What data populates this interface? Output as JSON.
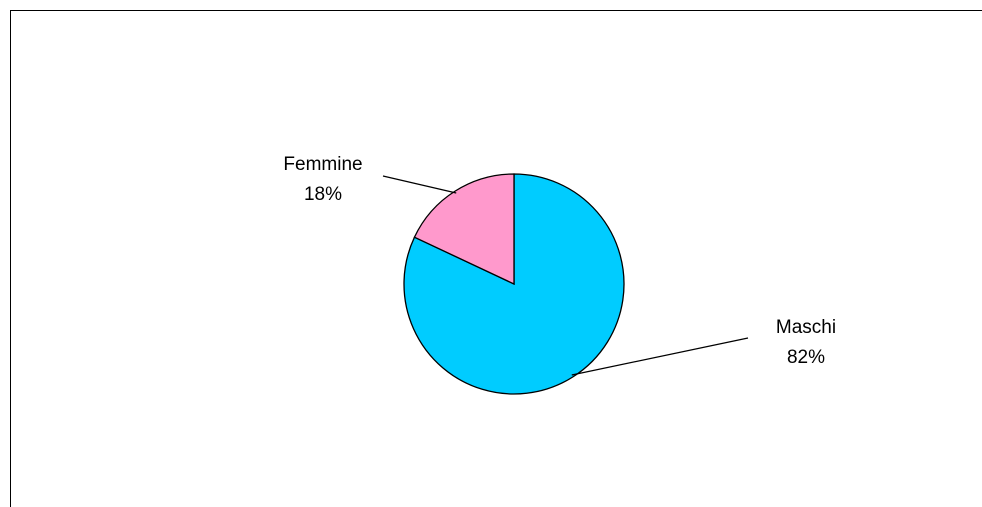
{
  "chart_data": {
    "type": "pie",
    "categories": [
      "Maschi",
      "Femmine"
    ],
    "values": [
      82,
      18
    ],
    "value_labels": [
      "82%",
      "18%"
    ],
    "colors": [
      "#00ccff",
      "#ff99cc"
    ],
    "start_angle": 0,
    "direction": "clockwise"
  }
}
